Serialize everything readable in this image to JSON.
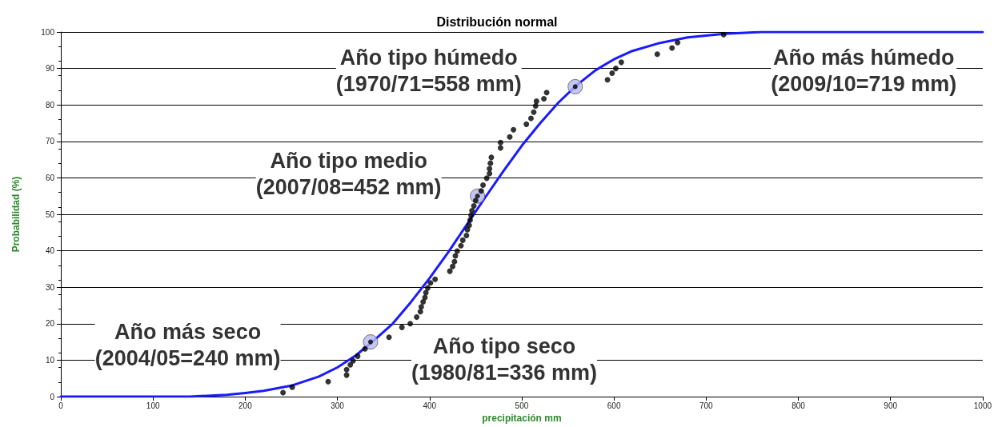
{
  "chart_data": {
    "type": "scatter",
    "title": "Distribución normal",
    "xlabel": "precipitación mm",
    "ylabel": "Probabilidad (%)",
    "xlim": [
      0,
      1000
    ],
    "xticks": [
      0,
      100,
      200,
      300,
      400,
      500,
      600,
      700,
      800,
      900,
      1000
    ],
    "ylim": [
      0,
      100
    ],
    "yticks": [
      0,
      10,
      20,
      30,
      40,
      50,
      60,
      70,
      80,
      90,
      100
    ],
    "grid": "y",
    "series": [
      {
        "type": "line",
        "color": "#1a1aff",
        "marker": "none",
        "line_style": "solid",
        "x": [
          0,
          140,
          180,
          200,
          220,
          250,
          280,
          300,
          320,
          340,
          360,
          380,
          400,
          420,
          440,
          460,
          480,
          500,
          520,
          540,
          560,
          580,
          600,
          620,
          650,
          680,
          720,
          760,
          1000
        ],
        "values": [
          0,
          0,
          0.5,
          1,
          1.6,
          3,
          5.5,
          8,
          11.3,
          15.5,
          20,
          26,
          32.5,
          39.5,
          47,
          54.5,
          61.8,
          68.8,
          75,
          80.7,
          85.5,
          89.5,
          92.5,
          94.8,
          97,
          98.5,
          99.5,
          100,
          100
        ]
      },
      {
        "color": "#000000",
        "marker": "circle",
        "x": [
          241,
          251,
          290,
          310,
          310,
          314,
          317,
          322,
          330,
          356,
          370,
          379,
          386,
          390,
          391,
          393,
          395,
          396,
          398,
          401,
          406,
          422,
          425,
          427,
          428,
          430,
          434,
          436,
          440,
          441,
          443,
          444,
          445,
          446,
          448,
          450,
          456,
          458,
          462,
          465,
          465,
          466,
          467,
          477,
          477,
          487,
          491,
          505,
          510,
          513,
          515,
          516,
          524,
          527,
          593,
          598,
          602,
          608,
          647,
          663,
          669,
          719
        ],
        "values": [
          1.1,
          2.6,
          4.1,
          5.9,
          7.4,
          8.7,
          9.8,
          11.1,
          13.1,
          16.3,
          19,
          20,
          21.8,
          23.3,
          24.6,
          26,
          27.2,
          28.5,
          29.8,
          31.2,
          32.2,
          34.4,
          35.7,
          37,
          38.6,
          39.9,
          41.4,
          42.9,
          44.2,
          45.8,
          47,
          48.4,
          49.7,
          51,
          52.3,
          53.8,
          56.4,
          58,
          59.9,
          61.2,
          62.5,
          64,
          65.6,
          68.2,
          69.7,
          71.2,
          73.2,
          74.7,
          76.3,
          78,
          79.7,
          81,
          81.7,
          83.4,
          86.9,
          88.7,
          90,
          91.7,
          93.9,
          95.6,
          97.1,
          99.3
        ]
      },
      {
        "color": "#b8b8f0",
        "marker": "circle",
        "x": [
          336,
          452,
          558
        ],
        "values": [
          15,
          55,
          85
        ]
      }
    ],
    "annotations": [
      {
        "text": "Año más seco\n(2004/05=240 mm)",
        "x": 241,
        "y": 1.1
      },
      {
        "text": "Año tipo seco\n(1980/81=336 mm)",
        "x": 336,
        "y": 15
      },
      {
        "text": "Año tipo medio\n(2007/08=452 mm)",
        "x": 452,
        "y": 55
      },
      {
        "text": "Año tipo húmedo\n(1970/71=558 mm)",
        "x": 558,
        "y": 85
      },
      {
        "text": "Año más húmedo\n(2009/10=719 mm)",
        "x": 719,
        "y": 99.3
      }
    ]
  }
}
